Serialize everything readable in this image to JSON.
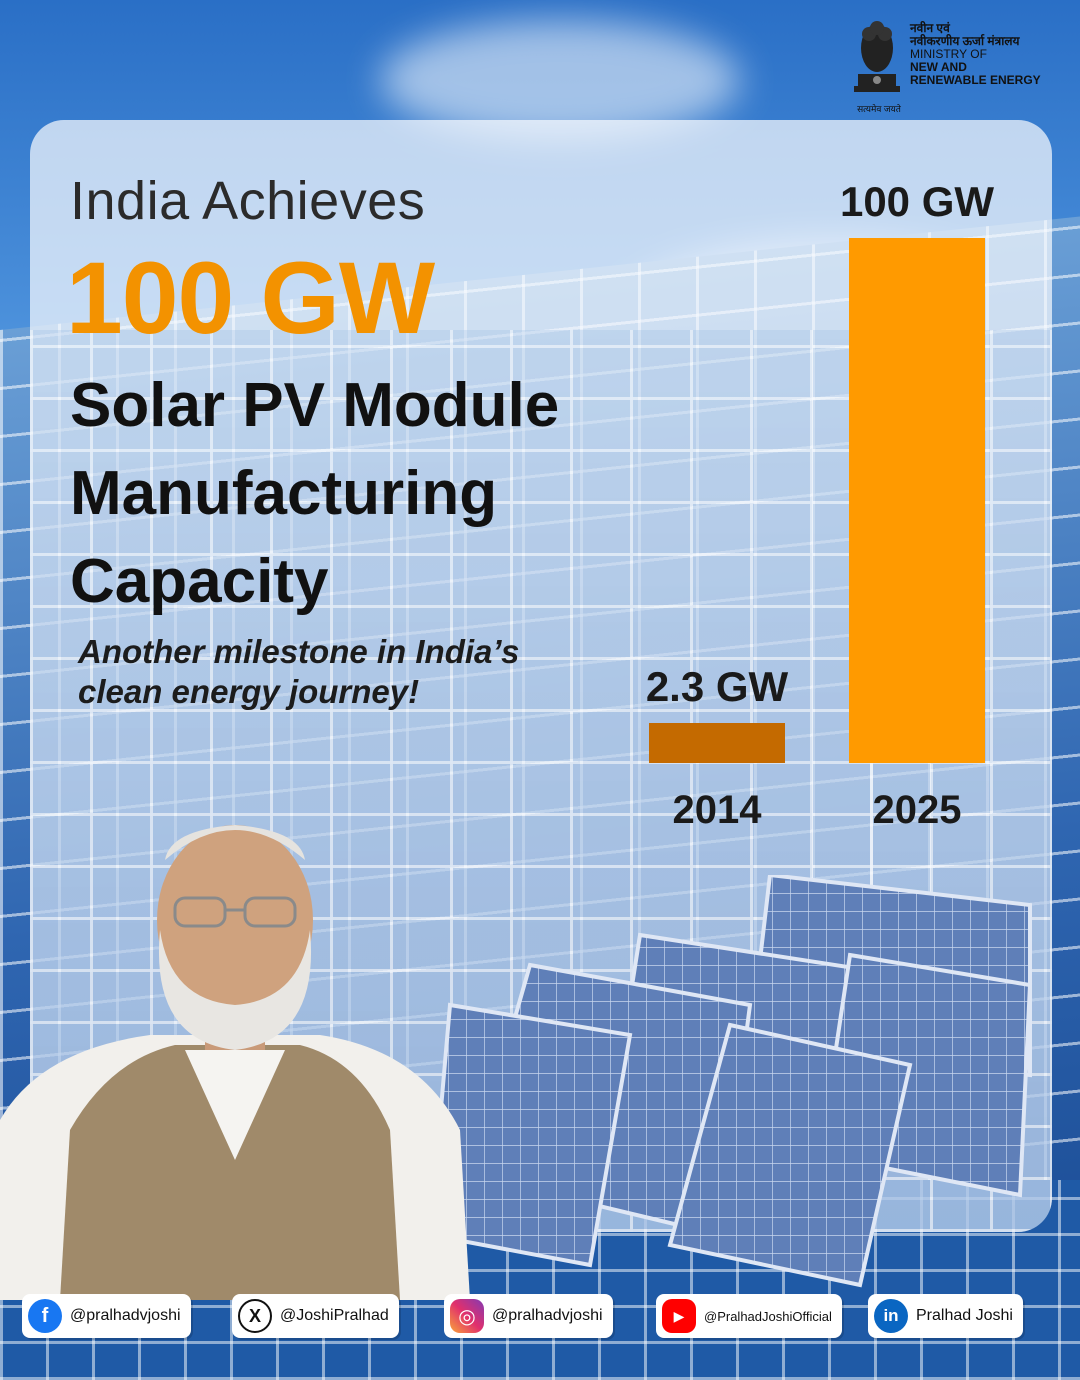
{
  "ministry": {
    "hindi_line1": "नवीन एवं",
    "hindi_line2": "नवीकरणीय ऊर्जा मंत्रालय",
    "line1": "MINISTRY OF",
    "line2": "NEW AND",
    "line3": "RENEWABLE ENERGY",
    "motto": "सत्यमेव जयते"
  },
  "headline": {
    "pre": "India Achieves",
    "big": "100 GW",
    "main_line1": "Solar PV Module",
    "main_line2": "Manufacturing",
    "main_line3": "Capacity",
    "sub_line1": "Another milestone in India’s",
    "sub_line2": "clean energy journey!"
  },
  "chart_data": {
    "type": "bar",
    "categories": [
      "2014",
      "2025"
    ],
    "values": [
      2.3,
      100
    ],
    "data_labels": [
      "2.3 GW",
      "100 GW"
    ],
    "unit": "GW",
    "colors": [
      "#c46a00",
      "#ff9a00"
    ],
    "title": "",
    "xlabel": "",
    "ylabel": "",
    "ylim": [
      0,
      100
    ],
    "grid": false,
    "legend": "none"
  },
  "social": {
    "facebook": "@pralhadvjoshi",
    "x": "@JoshiPralhad",
    "instagram": "@pralhadvjoshi",
    "youtube": "@PralhadJoshiOfficial",
    "linkedin": "Pralhad Joshi"
  },
  "colors": {
    "accent_orange": "#f39200",
    "sky_blue": "#4d92dc"
  }
}
